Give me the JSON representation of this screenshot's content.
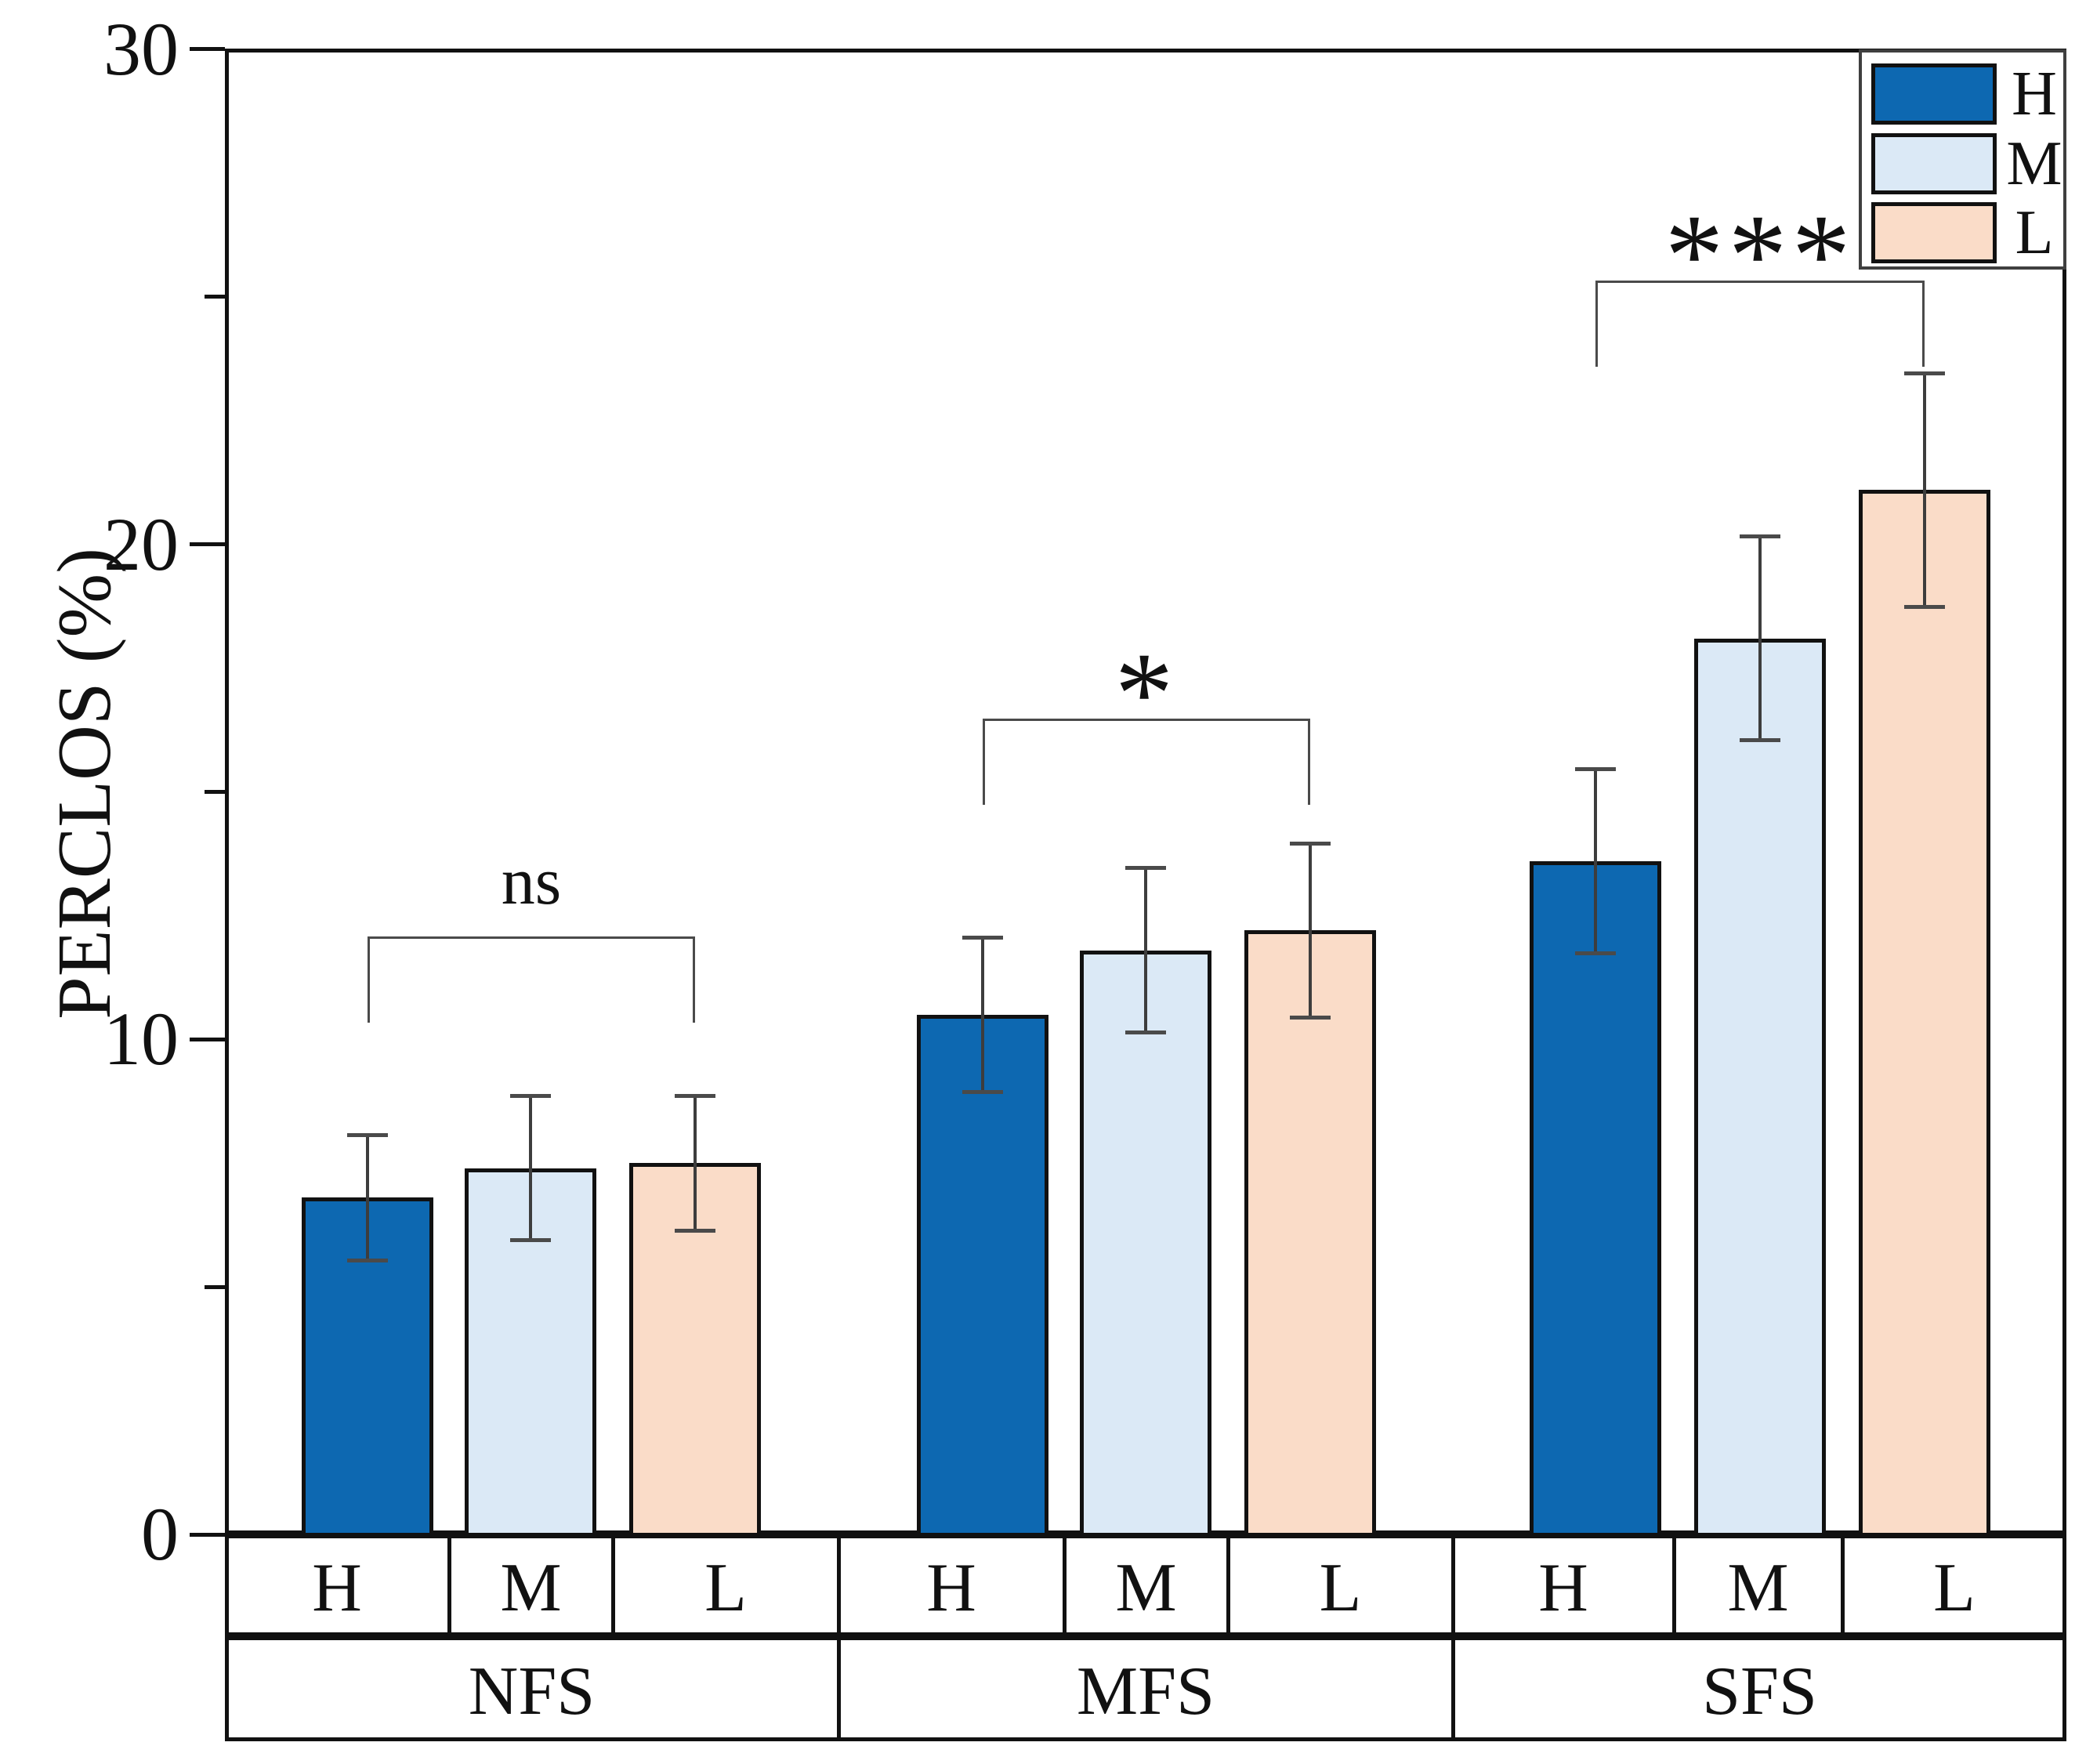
{
  "figure": {
    "y_axis_title": "PERCLOS (%)",
    "legend": {
      "items": [
        {
          "label": "H",
          "color": "#0d68b1"
        },
        {
          "label": "M",
          "color": "#dbe9f6"
        },
        {
          "label": "L",
          "color": "#fadcc8"
        }
      ]
    }
  },
  "chart_data": {
    "type": "bar",
    "title": "",
    "xlabel": "",
    "ylabel": "PERCLOS (%)",
    "ylim": [
      0,
      30
    ],
    "yticks": [
      0,
      10,
      20,
      30
    ],
    "minor_yticks": [
      5,
      15,
      25
    ],
    "grid": false,
    "legend_position": "top-right",
    "categories": [
      "NFS",
      "MFS",
      "SFS"
    ],
    "sub_categories": [
      "H",
      "M",
      "L"
    ],
    "series": [
      {
        "name": "H",
        "color": "#0d68b1",
        "values": [
          6.8,
          10.5,
          13.6
        ],
        "errors": [
          1.3,
          1.6,
          1.9
        ]
      },
      {
        "name": "M",
        "color": "#dbe9f6",
        "values": [
          7.4,
          11.8,
          18.1
        ],
        "errors": [
          1.5,
          1.7,
          2.1
        ]
      },
      {
        "name": "L",
        "color": "#fadcc8",
        "values": [
          7.5,
          12.2,
          21.1
        ],
        "errors": [
          1.4,
          1.8,
          2.4
        ]
      }
    ],
    "significance": [
      {
        "group": "NFS",
        "label": "ns"
      },
      {
        "group": "MFS",
        "label": "*"
      },
      {
        "group": "SFS",
        "label": "***"
      }
    ],
    "bar_border_color": "#111111",
    "error_bar_color": "#3d3d3d"
  }
}
